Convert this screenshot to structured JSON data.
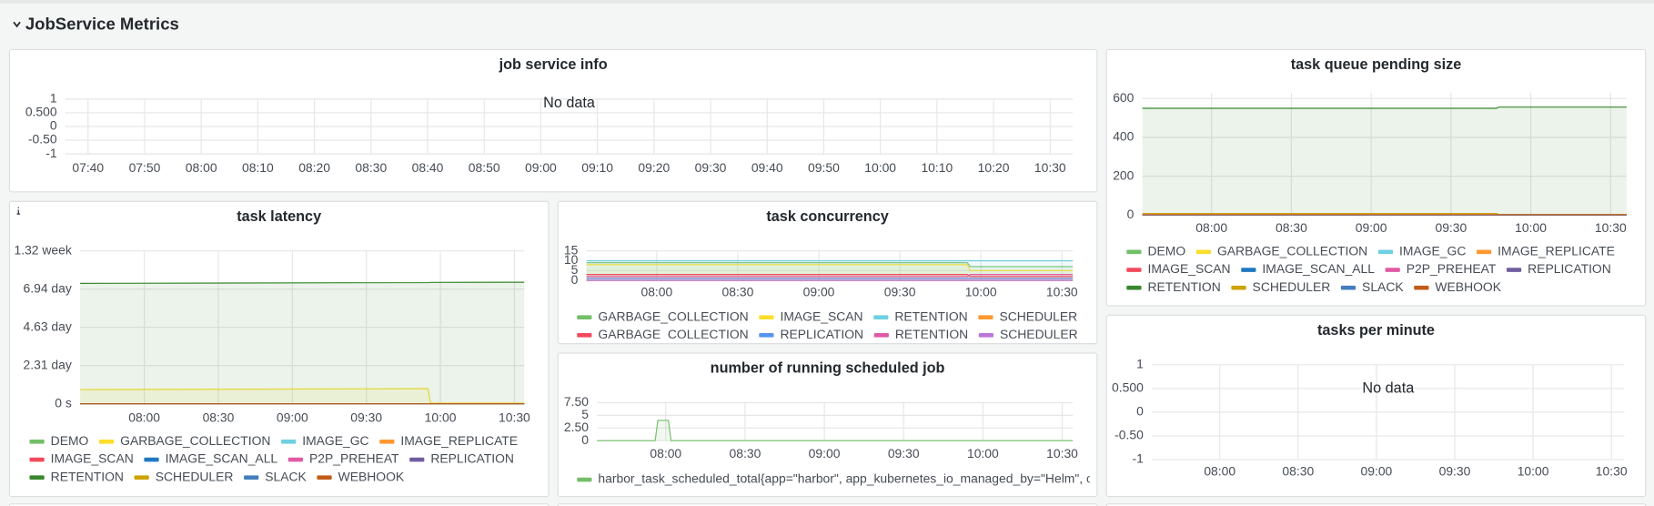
{
  "header": {
    "title": "JobService Metrics"
  },
  "chart_data": [
    {
      "type": "line",
      "title": "job service info",
      "annotation": "No data",
      "xlim": [
        "07:36",
        "10:34"
      ],
      "xticks": [
        "07:40",
        "07:50",
        "08:00",
        "08:10",
        "08:20",
        "08:30",
        "08:40",
        "08:50",
        "09:00",
        "09:10",
        "09:20",
        "09:30",
        "09:40",
        "09:50",
        "10:00",
        "10:10",
        "10:20",
        "10:30"
      ],
      "ylim": [
        -1,
        1
      ],
      "yticks": [
        1,
        {
          "value": 0.5,
          "label": "0.500"
        },
        0,
        {
          "value": -0.5,
          "label": "-0.50"
        },
        -1
      ],
      "grid": true
    },
    {
      "type": "line",
      "title": "task queue pending size",
      "legend": "bottom",
      "grid": true,
      "xlim": [
        "07:34",
        "10:36"
      ],
      "xticks": [
        "08:00",
        "08:30",
        "09:00",
        "09:30",
        "10:00",
        "10:30"
      ],
      "ylim": [
        0,
        630
      ],
      "yticks": [
        0,
        200,
        400,
        600
      ],
      "x": [
        "07:34",
        "09:47",
        "09:48",
        "10:36"
      ],
      "series": [
        {
          "name": "DEMO",
          "color": "#73bf69",
          "values": [
            0,
            0,
            0,
            0
          ]
        },
        {
          "name": "GARBAGE_COLLECTION",
          "color": "#fade2a",
          "values": [
            0,
            0,
            0,
            0
          ]
        },
        {
          "name": "IMAGE_GC",
          "color": "#6ed0e0",
          "values": [
            0,
            0,
            0,
            0
          ]
        },
        {
          "name": "IMAGE_REPLICATE",
          "color": "#ff9830",
          "values": [
            0,
            0,
            0,
            0
          ]
        },
        {
          "name": "IMAGE_SCAN",
          "color": "#f2495c",
          "values": [
            0,
            0,
            0,
            0
          ]
        },
        {
          "name": "IMAGE_SCAN_ALL",
          "color": "#1f78c1",
          "values": [
            0,
            0,
            0,
            0
          ]
        },
        {
          "name": "P2P_PREHEAT",
          "color": "#e05aa6",
          "values": [
            0,
            0,
            0,
            0
          ]
        },
        {
          "name": "REPLICATION",
          "color": "#705da0",
          "values": [
            0,
            0,
            0,
            0
          ]
        },
        {
          "name": "RETENTION",
          "color": "#37872d",
          "values": [
            550,
            550,
            556,
            556
          ]
        },
        {
          "name": "SCHEDULER",
          "color": "#cca300",
          "values": [
            8,
            8,
            3,
            3
          ]
        },
        {
          "name": "SLACK",
          "color": "#447ebc",
          "values": [
            0,
            0,
            0,
            0
          ]
        },
        {
          "name": "WEBHOOK",
          "color": "#c15c17",
          "values": [
            2,
            2,
            2,
            2
          ]
        }
      ]
    },
    {
      "type": "line",
      "title": "task latency",
      "legend": "bottom",
      "grid": true,
      "xlim": [
        "07:34",
        "10:34"
      ],
      "xticks": [
        "08:00",
        "08:30",
        "09:00",
        "09:30",
        "10:00",
        "10:30"
      ],
      "ylim": [
        0,
        800000
      ],
      "yticks": [
        {
          "value": 0,
          "label": "0 s"
        },
        {
          "value": 200000,
          "label": "2.31 day"
        },
        {
          "value": 400000,
          "label": "4.63 day"
        },
        {
          "value": 600000,
          "label": "6.94 day"
        },
        {
          "value": 800000,
          "label": "1.32 week"
        }
      ],
      "x": [
        "07:34",
        "09:55",
        "09:56",
        "10:34"
      ],
      "series": [
        {
          "name": "DEMO",
          "color": "#73bf69",
          "values": [
            0,
            0,
            0,
            0
          ]
        },
        {
          "name": "GARBAGE_COLLECTION",
          "color": "#fade2a",
          "values": [
            74000,
            79000,
            3000,
            3000
          ]
        },
        {
          "name": "IMAGE_GC",
          "color": "#6ed0e0",
          "values": [
            0,
            0,
            0,
            0
          ]
        },
        {
          "name": "IMAGE_REPLICATE",
          "color": "#ff9830",
          "values": [
            0,
            0,
            0,
            0
          ]
        },
        {
          "name": "IMAGE_SCAN",
          "color": "#f2495c",
          "values": [
            0,
            0,
            0,
            0
          ]
        },
        {
          "name": "IMAGE_SCAN_ALL",
          "color": "#1f78c1",
          "values": [
            0,
            0,
            0,
            0
          ]
        },
        {
          "name": "P2P_PREHEAT",
          "color": "#e05aa6",
          "values": [
            0,
            0,
            0,
            0
          ]
        },
        {
          "name": "REPLICATION",
          "color": "#705da0",
          "values": [
            0,
            0,
            0,
            0
          ]
        },
        {
          "name": "RETENTION",
          "color": "#37872d",
          "values": [
            630000,
            634000,
            635000,
            636000
          ]
        },
        {
          "name": "SCHEDULER",
          "color": "#cca300",
          "values": [
            0,
            0,
            0,
            0
          ]
        },
        {
          "name": "SLACK",
          "color": "#447ebc",
          "values": [
            0,
            0,
            0,
            0
          ]
        },
        {
          "name": "WEBHOOK",
          "color": "#c15c17",
          "values": [
            0,
            0,
            0,
            0
          ]
        }
      ]
    },
    {
      "type": "line",
      "title": "task concurrency",
      "legend": "bottom",
      "grid": true,
      "xlim": [
        "07:34",
        "10:34"
      ],
      "xticks": [
        "08:00",
        "08:30",
        "09:00",
        "09:30",
        "10:00",
        "10:30"
      ],
      "ylim": [
        0,
        15
      ],
      "yticks": [
        0,
        5,
        10,
        15
      ],
      "x": [
        "07:34",
        "09:55",
        "09:56",
        "10:34"
      ],
      "series": [
        {
          "name": "GARBAGE_COLLECTION",
          "color": "#73bf69",
          "values": [
            9,
            9,
            7,
            7
          ]
        },
        {
          "name": "IMAGE_SCAN",
          "color": "#fade2a",
          "values": [
            8,
            8,
            5,
            5
          ]
        },
        {
          "name": "RETENTION",
          "color": "#6ed0e0",
          "values": [
            10,
            10,
            10,
            10
          ]
        },
        {
          "name": "SCHEDULER",
          "color": "#ff9830",
          "values": [
            0,
            0,
            0,
            0
          ]
        },
        {
          "name": "GARBAGE_COLLECTION",
          "color": "#f2495c",
          "values": [
            3,
            3,
            2,
            2
          ]
        },
        {
          "name": "REPLICATION",
          "color": "#5794f2",
          "values": [
            1,
            1,
            1,
            1
          ]
        },
        {
          "name": "RETENTION",
          "color": "#e05aa6",
          "values": [
            2,
            2,
            3,
            3
          ]
        },
        {
          "name": "SCHEDULER",
          "color": "#b877d9",
          "values": [
            0,
            0,
            0,
            0
          ]
        }
      ]
    },
    {
      "type": "line",
      "title": "number of running scheduled job",
      "legend": "bottom",
      "grid": true,
      "xlim": [
        "07:34",
        "10:34"
      ],
      "xticks": [
        "08:00",
        "08:30",
        "09:00",
        "09:30",
        "10:00",
        "10:30"
      ],
      "ylim": [
        0,
        7.5
      ],
      "yticks": [
        0,
        {
          "value": 2.5,
          "label": "2.50"
        },
        5,
        {
          "value": 7.5,
          "label": "7.50"
        }
      ],
      "x": [
        "07:34",
        "07:56",
        "07:57",
        "08:01",
        "08:02",
        "10:34"
      ],
      "series": [
        {
          "name": "harbor_task_scheduled_total{app=\"harbor\", app_kubernetes_io_managed_by=\"Helm\", chart",
          "color": "#73bf69",
          "values": [
            0,
            0,
            4,
            4,
            0,
            0
          ]
        }
      ]
    },
    {
      "type": "line",
      "title": "tasks per minute",
      "annotation": "No data",
      "grid": true,
      "xlim": [
        "07:34",
        "10:35"
      ],
      "xticks": [
        "08:00",
        "08:30",
        "09:00",
        "09:30",
        "10:00",
        "10:30"
      ],
      "ylim": [
        -1,
        1
      ],
      "yticks": [
        1,
        {
          "value": 0.5,
          "label": "0.500"
        },
        0,
        {
          "value": -0.5,
          "label": "-0.50"
        },
        -1
      ]
    }
  ]
}
